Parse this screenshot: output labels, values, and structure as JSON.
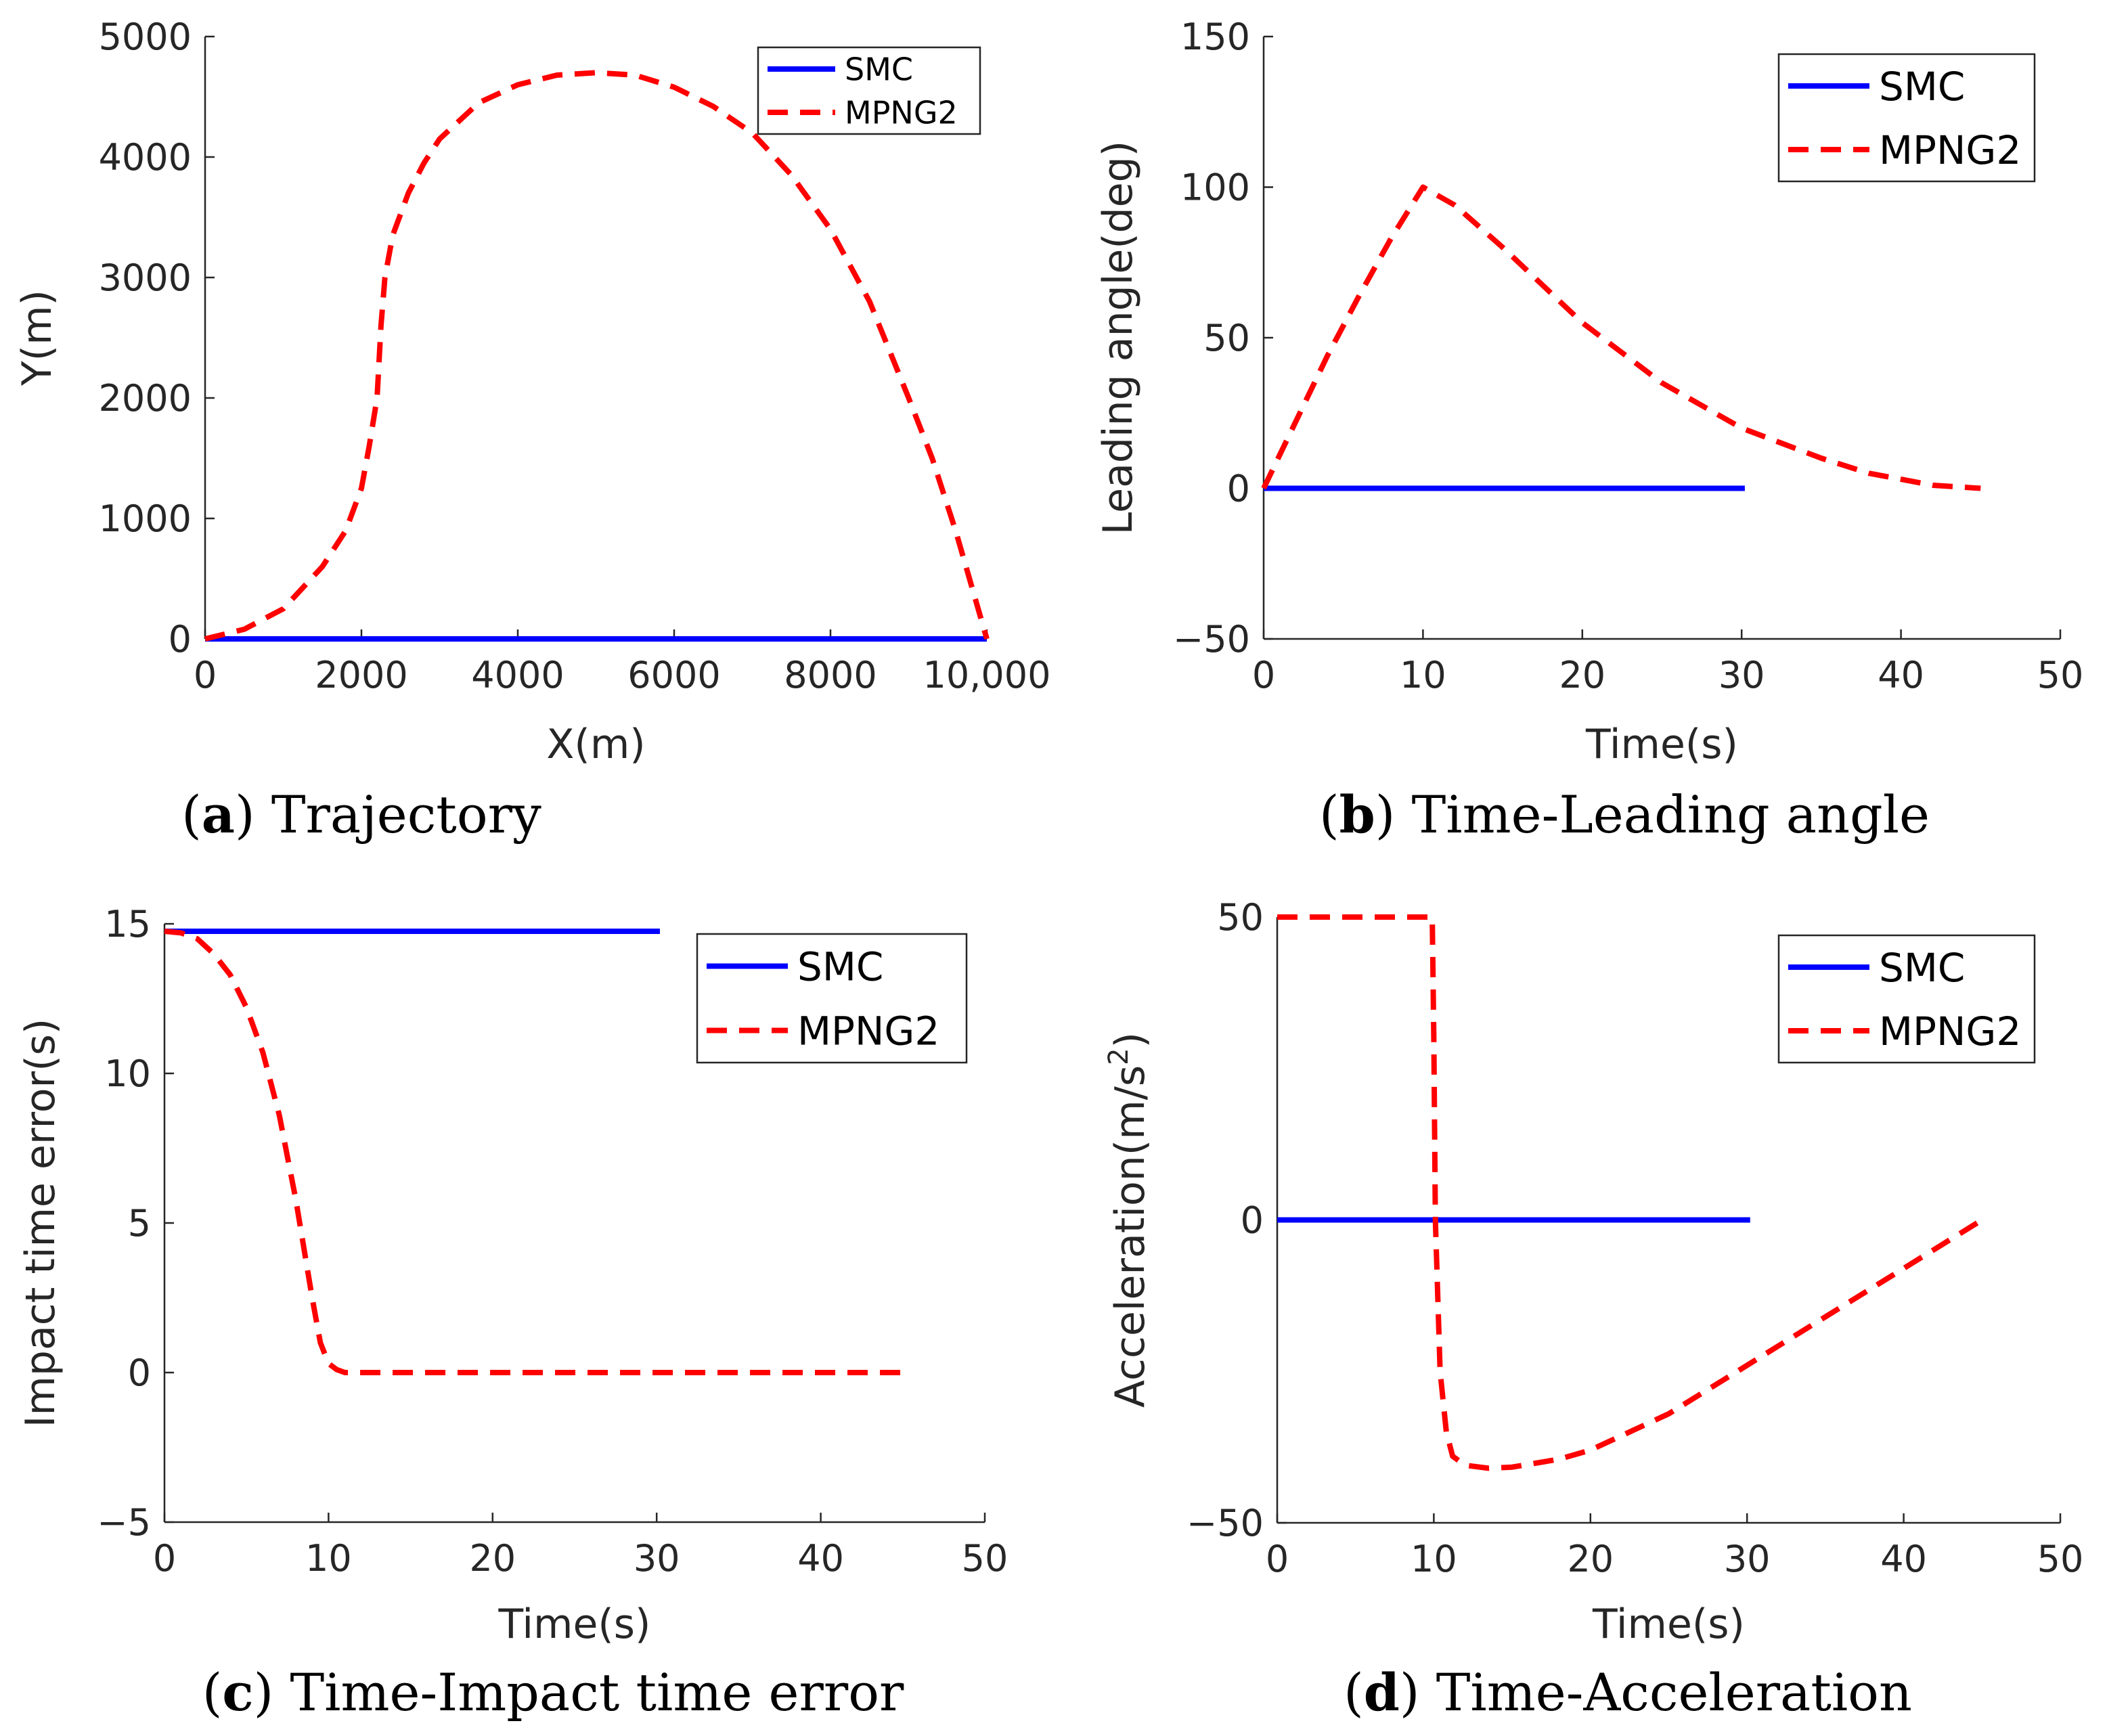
{
  "colors": {
    "smc": "#0000ff",
    "mpng2": "#ff0000",
    "axis": "#262626"
  },
  "chart_data": [
    {
      "id": "a",
      "type": "line",
      "caption_letter": "a",
      "caption_text": "Trajectory",
      "xlabel": "X(m)",
      "ylabel": "Y(m)",
      "xlim": [
        0,
        10000
      ],
      "ylim": [
        0,
        5000
      ],
      "xticks": [
        0,
        2000,
        4000,
        6000,
        8000,
        10000
      ],
      "xtick_labels": [
        "0",
        "2000",
        "4000",
        "6000",
        "8000",
        "10,000"
      ],
      "yticks": [
        0,
        1000,
        2000,
        3000,
        4000,
        5000
      ],
      "ytick_labels": [
        "0",
        "1000",
        "2000",
        "3000",
        "4000",
        "5000"
      ],
      "grid": false,
      "legend": {
        "position": "top-right",
        "entries": [
          "SMC",
          "MPNG2"
        ]
      },
      "series": [
        {
          "name": "SMC",
          "style": "solid",
          "x": [
            0,
            10000
          ],
          "y": [
            0,
            0
          ]
        },
        {
          "name": "MPNG2",
          "style": "dashed",
          "x": [
            0,
            500,
            1000,
            1500,
            1800,
            2000,
            2100,
            2200,
            2250,
            2300,
            2400,
            2600,
            2800,
            3000,
            3500,
            4000,
            4500,
            5000,
            5500,
            6000,
            6500,
            7000,
            7500,
            8000,
            8500,
            9000,
            9300,
            9600,
            9800,
            10000
          ],
          "y": [
            0,
            80,
            250,
            600,
            900,
            1250,
            1600,
            2000,
            2600,
            3000,
            3350,
            3700,
            3950,
            4150,
            4450,
            4600,
            4680,
            4700,
            4680,
            4580,
            4420,
            4200,
            3850,
            3400,
            2800,
            2000,
            1500,
            900,
            450,
            0
          ]
        }
      ]
    },
    {
      "id": "b",
      "type": "line",
      "caption_letter": "b",
      "caption_text": "Time-Leading angle",
      "xlabel": "Time(s)",
      "ylabel": "Leading angle(deg)",
      "xlim": [
        0,
        50
      ],
      "ylim": [
        -50,
        150
      ],
      "xticks": [
        0,
        10,
        20,
        30,
        40,
        50
      ],
      "xtick_labels": [
        "0",
        "10",
        "20",
        "30",
        "40",
        "50"
      ],
      "yticks": [
        -50,
        0,
        50,
        100,
        150
      ],
      "ytick_labels": [
        "−50",
        "0",
        "50",
        "100",
        "150"
      ],
      "grid": false,
      "legend": {
        "position": "top-right",
        "entries": [
          "SMC",
          "MPNG2"
        ]
      },
      "series": [
        {
          "name": "SMC",
          "style": "solid",
          "x": [
            0,
            30.2
          ],
          "y": [
            0,
            0
          ]
        },
        {
          "name": "MPNG2",
          "style": "dashed",
          "x": [
            0,
            2,
            4,
            6,
            8,
            10,
            12,
            15,
            20,
            25,
            30,
            35,
            38,
            40,
            42,
            45
          ],
          "y": [
            0,
            22,
            44,
            64,
            83,
            100,
            94,
            80,
            55,
            35,
            20,
            10,
            5,
            3,
            1,
            0
          ]
        }
      ]
    },
    {
      "id": "c",
      "type": "line",
      "caption_letter": "c",
      "caption_text": "Time-Impact time error",
      "xlabel": "Time(s)",
      "ylabel": "Impact time error(s)",
      "xlim": [
        0,
        50
      ],
      "ylim": [
        -5,
        15
      ],
      "xticks": [
        0,
        10,
        20,
        30,
        40,
        50
      ],
      "xtick_labels": [
        "0",
        "10",
        "20",
        "30",
        "40",
        "50"
      ],
      "yticks": [
        -5,
        0,
        5,
        10,
        15
      ],
      "ytick_labels": [
        "−5",
        "0",
        "5",
        "10",
        "15"
      ],
      "grid": false,
      "legend": {
        "position": "top-right",
        "entries": [
          "SMC",
          "MPNG2"
        ]
      },
      "series": [
        {
          "name": "SMC",
          "style": "solid",
          "x": [
            0,
            30.2
          ],
          "y": [
            14.75,
            14.75
          ]
        },
        {
          "name": "MPNG2",
          "style": "dashed",
          "x": [
            0,
            1,
            2,
            3,
            4,
            5,
            6,
            7,
            8,
            9,
            9.5,
            10,
            10.5,
            11,
            15,
            20,
            30,
            40,
            45
          ],
          "y": [
            14.75,
            14.7,
            14.5,
            14.0,
            13.3,
            12.2,
            10.7,
            8.6,
            5.8,
            2.5,
            1.0,
            0.3,
            0.1,
            0,
            0,
            0,
            0,
            0,
            0
          ]
        }
      ]
    },
    {
      "id": "d",
      "type": "line",
      "caption_letter": "d",
      "caption_text": "Time-Acceleration",
      "xlabel": "Time(s)",
      "ylabel_main": "Acceleration(m/s",
      "ylabel_sup": "2",
      "ylabel_end": ")",
      "xlim": [
        0,
        50
      ],
      "ylim": [
        -50,
        50
      ],
      "xticks": [
        0,
        10,
        20,
        30,
        40,
        50
      ],
      "xtick_labels": [
        "0",
        "10",
        "20",
        "30",
        "40",
        "50"
      ],
      "yticks": [
        -50,
        0,
        50
      ],
      "ytick_labels": [
        "−50",
        "0",
        "50"
      ],
      "grid": false,
      "legend": {
        "position": "top-right",
        "entries": [
          "SMC",
          "MPNG2"
        ]
      },
      "series": [
        {
          "name": "SMC",
          "style": "solid",
          "x": [
            0,
            30.2
          ],
          "y": [
            0,
            0
          ]
        },
        {
          "name": "MPNG2",
          "style": "dashed",
          "x": [
            0,
            9.9,
            10.0,
            10.1,
            10.4,
            10.8,
            11.2,
            12,
            13.5,
            15,
            18,
            20,
            25,
            30,
            35,
            40,
            45
          ],
          "y": [
            50,
            50,
            30,
            0,
            -25,
            -35,
            -39,
            -40.5,
            -41,
            -40.8,
            -39.5,
            -38,
            -32,
            -24,
            -16,
            -8,
            0
          ]
        }
      ]
    }
  ]
}
